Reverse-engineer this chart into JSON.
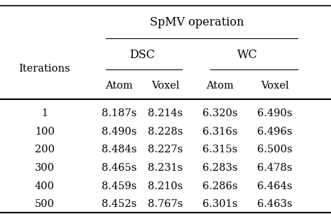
{
  "title": "SpMV operation",
  "col1_header": "Iterations",
  "group_headers": [
    "DSC",
    "WC"
  ],
  "sub_headers": [
    "Atom",
    "Voxel",
    "Atom",
    "Voxel"
  ],
  "iterations": [
    "1",
    "100",
    "200",
    "300",
    "400",
    "500"
  ],
  "dsc_atom": [
    "8.187s",
    "8.490s",
    "8.484s",
    "8.465s",
    "8.459s",
    "8.452s"
  ],
  "dsc_voxel": [
    "8.214s",
    "8.228s",
    "8.227s",
    "8.231s",
    "8.210s",
    "8.767s"
  ],
  "wc_atom": [
    "6.320s",
    "6.316s",
    "6.315s",
    "6.283s",
    "6.286s",
    "6.301s"
  ],
  "wc_voxel": [
    "6.490s",
    "6.496s",
    "6.500s",
    "6.478s",
    "6.464s",
    "6.463s"
  ],
  "bg_color": "#ffffff",
  "font_size": 10.5,
  "header_font_size": 11.5
}
